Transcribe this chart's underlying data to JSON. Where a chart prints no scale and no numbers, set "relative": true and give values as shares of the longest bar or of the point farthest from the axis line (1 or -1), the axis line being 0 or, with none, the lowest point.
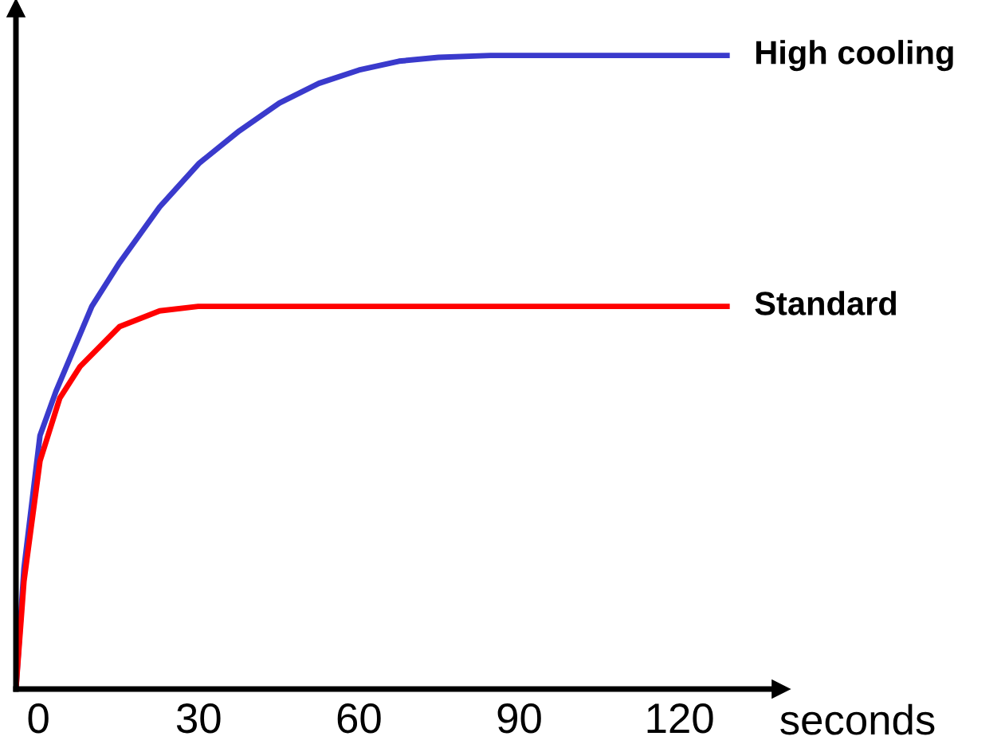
{
  "chart_data": {
    "type": "line",
    "relative": true,
    "xlabel": "seconds",
    "xlim": [
      -4.2,
      139
    ],
    "xticks": [
      0,
      30,
      60,
      90,
      120
    ],
    "legend": false,
    "grid": false,
    "series": [
      {
        "name": "High cooling",
        "color": "#3a3acc",
        "x": [
          -4.2,
          -2.7,
          0.3,
          3.3,
          7.8,
          10,
          15.2,
          22.7,
          30.1,
          37.6,
          45.1,
          52.5,
          60,
          67.5,
          74.9,
          84.6,
          129.4
        ],
        "values": [
          0,
          0.19,
          0.4,
          0.47,
          0.56,
          0.604,
          0.673,
          0.761,
          0.83,
          0.881,
          0.925,
          0.956,
          0.977,
          0.991,
          0.997,
          1,
          1
        ]
      },
      {
        "name": "Standard",
        "color": "#ff0000",
        "x": [
          -4.2,
          -2.7,
          0.3,
          4,
          7.8,
          15.2,
          22.7,
          29.9,
          129.4
        ],
        "values": [
          0,
          0.17,
          0.36,
          0.459,
          0.509,
          0.572,
          0.597,
          0.604,
          0.604
        ]
      }
    ]
  }
}
